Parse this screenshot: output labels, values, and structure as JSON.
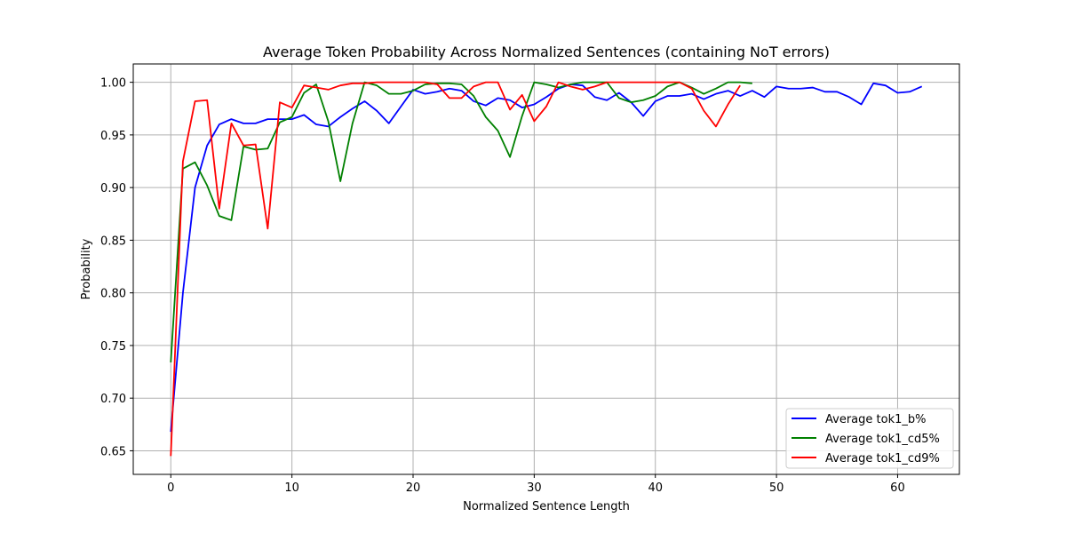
{
  "chart_data": {
    "type": "line",
    "title": "Average Token Probability Across Normalized Sentences (containing NoT errors)",
    "xlabel": "Normalized Sentence Length",
    "ylabel": "Probability",
    "xlim": [
      -3.1,
      65.1
    ],
    "ylim": [
      0.6276,
      1.0174
    ],
    "x_ticks": [
      0,
      10,
      20,
      30,
      40,
      50,
      60
    ],
    "x_tick_labels": [
      "0",
      "10",
      "20",
      "30",
      "40",
      "50",
      "60"
    ],
    "y_ticks": [
      0.65,
      0.7,
      0.75,
      0.8,
      0.85,
      0.9,
      0.95,
      1.0
    ],
    "y_tick_labels": [
      "0.65",
      "0.70",
      "0.75",
      "0.80",
      "0.85",
      "0.90",
      "0.95",
      "1.00"
    ],
    "grid": true,
    "legend_position": "lower-right",
    "series": [
      {
        "name": "Average tok1_b%",
        "color": "#0000ff",
        "x": [
          0,
          1,
          2,
          3,
          4,
          5,
          6,
          7,
          8,
          9,
          10,
          11,
          12,
          13,
          14,
          15,
          16,
          17,
          18,
          19,
          20,
          21,
          22,
          23,
          24,
          25,
          26,
          27,
          28,
          29,
          30,
          31,
          32,
          33,
          34,
          35,
          36,
          37,
          38,
          39,
          40,
          41,
          42,
          43,
          44,
          45,
          46,
          47,
          48,
          49,
          50,
          51,
          52,
          53,
          54,
          55,
          56,
          57,
          58,
          59,
          60,
          61,
          62
        ],
        "y": [
          0.668,
          0.8,
          0.9,
          0.94,
          0.96,
          0.965,
          0.961,
          0.961,
          0.965,
          0.965,
          0.965,
          0.969,
          0.96,
          0.958,
          0.967,
          0.975,
          0.982,
          0.973,
          0.961,
          0.977,
          0.993,
          0.989,
          0.991,
          0.994,
          0.992,
          0.982,
          0.978,
          0.985,
          0.983,
          0.976,
          0.979,
          0.986,
          0.994,
          0.998,
          0.997,
          0.986,
          0.983,
          0.99,
          0.981,
          0.968,
          0.982,
          0.987,
          0.987,
          0.989,
          0.984,
          0.989,
          0.992,
          0.987,
          0.992,
          0.986,
          0.996,
          0.994,
          0.994,
          0.995,
          0.991,
          0.991,
          0.986,
          0.979,
          0.999,
          0.997,
          0.99,
          0.991,
          0.996
        ]
      },
      {
        "name": "Average tok1_cd5%",
        "color": "#008000",
        "x": [
          0,
          1,
          2,
          3,
          4,
          5,
          6,
          7,
          8,
          9,
          10,
          11,
          12,
          13,
          14,
          15,
          16,
          17,
          18,
          19,
          20,
          21,
          22,
          23,
          24,
          25,
          26,
          27,
          28,
          29,
          30,
          31,
          32,
          33,
          34,
          35,
          36,
          37,
          38,
          39,
          40,
          41,
          42,
          43,
          44,
          45,
          46,
          47,
          48
        ],
        "y": [
          0.734,
          0.918,
          0.924,
          0.902,
          0.873,
          0.869,
          0.939,
          0.936,
          0.937,
          0.962,
          0.967,
          0.99,
          0.998,
          0.963,
          0.906,
          0.961,
          1.0,
          0.997,
          0.989,
          0.989,
          0.992,
          0.998,
          0.999,
          0.999,
          0.998,
          0.987,
          0.967,
          0.954,
          0.929,
          0.968,
          1.0,
          0.998,
          0.995,
          0.998,
          1.0,
          1.0,
          1.0,
          0.985,
          0.981,
          0.983,
          0.987,
          0.996,
          1.0,
          0.995,
          0.989,
          0.994,
          1.0,
          1.0,
          0.999
        ]
      },
      {
        "name": "Average tok1_cd9%",
        "color": "#ff0000",
        "x": [
          0,
          1,
          2,
          3,
          4,
          5,
          6,
          7,
          8,
          9,
          10,
          11,
          12,
          13,
          14,
          15,
          16,
          17,
          18,
          19,
          20,
          21,
          22,
          23,
          24,
          25,
          26,
          27,
          28,
          29,
          30,
          31,
          32,
          33,
          34,
          35,
          36,
          37,
          38,
          39,
          40,
          41,
          42,
          43,
          44,
          45,
          46,
          47
        ],
        "y": [
          0.645,
          0.925,
          0.982,
          0.983,
          0.88,
          0.961,
          0.94,
          0.941,
          0.861,
          0.981,
          0.976,
          0.997,
          0.995,
          0.993,
          0.997,
          0.999,
          0.999,
          1.0,
          1.0,
          1.0,
          1.0,
          1.0,
          0.998,
          0.985,
          0.985,
          0.996,
          1.0,
          1.0,
          0.974,
          0.988,
          0.963,
          0.977,
          1.0,
          0.996,
          0.993,
          0.996,
          1.0,
          1.0,
          1.0,
          1.0,
          1.0,
          1.0,
          1.0,
          0.994,
          0.973,
          0.958,
          0.979,
          0.997
        ]
      }
    ]
  }
}
